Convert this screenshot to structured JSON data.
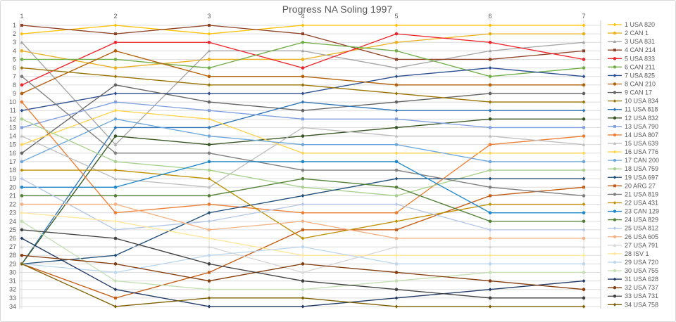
{
  "title": "Progress NA Soling 1997",
  "chart_data": {
    "type": "line",
    "title": "Progress NA Soling 1997",
    "x_axis": {
      "label_position": "top",
      "ticks": [
        "1",
        "2",
        "3",
        "4",
        "5",
        "6",
        "7"
      ]
    },
    "y_axis": {
      "inverted": true,
      "min": 1,
      "max": 34,
      "ticks": [
        "1",
        "2",
        "3",
        "4",
        "5",
        "6",
        "7",
        "8",
        "9",
        "10",
        "11",
        "12",
        "13",
        "14",
        "15",
        "16",
        "17",
        "18",
        "19",
        "20",
        "21",
        "22",
        "23",
        "24",
        "25",
        "26",
        "27",
        "28",
        "29",
        "30",
        "31",
        "32",
        "33",
        "34"
      ]
    },
    "grid": true,
    "legend_position": "right",
    "colors": {
      "text": "#595959",
      "gridline": "#DCDCDC",
      "axis": "#C8C8C8",
      "background": "#FFFFFF"
    },
    "series": [
      {
        "name": "1 USA 820",
        "color": "#FFC000",
        "marker": "diamond",
        "positions": [
          2,
          1,
          2,
          1,
          1,
          1,
          1
        ]
      },
      {
        "name": "2 CAN 1",
        "color": "#ECB01F",
        "marker": "circle",
        "positions": [
          4,
          6,
          5,
          5,
          3,
          2,
          2
        ]
      },
      {
        "name": "3 USA 831",
        "color": "#A5A5A5",
        "marker": "triangle",
        "positions": [
          3,
          15,
          4,
          4,
          6,
          4,
          3
        ]
      },
      {
        "name": "4 CAN 214",
        "color": "#8F4125",
        "marker": "square",
        "positions": [
          1,
          2,
          1,
          2,
          5,
          5,
          4
        ]
      },
      {
        "name": "5 USA 833",
        "color": "#EE2229",
        "marker": "circle",
        "positions": [
          8,
          3,
          3,
          6,
          2,
          3,
          5
        ]
      },
      {
        "name": "6 CAN 211",
        "color": "#70AD47",
        "marker": "circle",
        "positions": [
          5,
          5,
          6,
          3,
          4,
          7,
          6
        ]
      },
      {
        "name": "7 USA 825",
        "color": "#2A4E8F",
        "marker": "diamond",
        "positions": [
          11,
          9,
          9,
          9,
          7,
          6,
          7
        ]
      },
      {
        "name": "8 CAN 210",
        "color": "#B45F06",
        "marker": "circle",
        "positions": [
          9,
          4,
          7,
          7,
          8,
          8,
          8
        ]
      },
      {
        "name": "9 CAN 17",
        "color": "#636363",
        "marker": "circle",
        "positions": [
          16,
          8,
          10,
          11,
          10,
          9,
          9
        ]
      },
      {
        "name": "10 USA 834",
        "color": "#997300",
        "marker": "diamond",
        "positions": [
          6,
          7,
          8,
          8,
          9,
          10,
          10
        ]
      },
      {
        "name": "11 USA 818",
        "color": "#2E75B6",
        "marker": "diamond",
        "positions": [
          29,
          13,
          13,
          10,
          11,
          11,
          11
        ]
      },
      {
        "name": "12 USA 832",
        "color": "#375623",
        "marker": "circle",
        "positions": [
          29,
          14,
          15,
          14,
          13,
          12,
          12
        ]
      },
      {
        "name": "13 USA 790",
        "color": "#809FE0",
        "marker": "square",
        "positions": [
          13,
          10,
          11,
          12,
          12,
          13,
          13
        ]
      },
      {
        "name": "14 USA 807",
        "color": "#ED7D31",
        "marker": "circle",
        "positions": [
          10,
          23,
          22,
          23,
          23,
          15,
          14
        ]
      },
      {
        "name": "15 USA 639",
        "color": "#BFBFBF",
        "marker": "triangle",
        "positions": [
          14,
          19,
          20,
          13,
          14,
          14,
          15
        ]
      },
      {
        "name": "16 USA 776",
        "color": "#FFD34D",
        "marker": "diamond",
        "positions": [
          15,
          11,
          12,
          16,
          16,
          16,
          16
        ]
      },
      {
        "name": "17 CAN 200",
        "color": "#6FA8DC",
        "marker": "circle",
        "positions": [
          17,
          12,
          14,
          15,
          15,
          17,
          17
        ]
      },
      {
        "name": "18 USA 759",
        "color": "#A9D18E",
        "marker": "circle",
        "positions": [
          12,
          17,
          18,
          20,
          21,
          18,
          18
        ]
      },
      {
        "name": "19 USA 697",
        "color": "#1F4E79",
        "marker": "diamond",
        "positions": [
          29,
          28,
          23,
          21,
          19,
          19,
          19
        ]
      },
      {
        "name": "20 ARG 27",
        "color": "#C55A11",
        "marker": "square",
        "positions": [
          29,
          33,
          30,
          25,
          25,
          21,
          20
        ]
      },
      {
        "name": "21 USA 819",
        "color": "#7F7F7F",
        "marker": "circle",
        "positions": [
          7,
          16,
          16,
          18,
          18,
          20,
          21
        ]
      },
      {
        "name": "22 USA 431",
        "color": "#BF8F00",
        "marker": "diamond",
        "positions": [
          18,
          18,
          19,
          26,
          24,
          22,
          22
        ]
      },
      {
        "name": "23 CAN 129",
        "color": "#1E87C9",
        "marker": "circle",
        "positions": [
          20,
          20,
          17,
          17,
          17,
          23,
          23
        ]
      },
      {
        "name": "24 USA 829",
        "color": "#538135",
        "marker": "circle",
        "positions": [
          21,
          21,
          21,
          19,
          20,
          24,
          24
        ]
      },
      {
        "name": "25 USA 812",
        "color": "#B4C7E7",
        "marker": "diamond",
        "positions": [
          19,
          25,
          24,
          22,
          22,
          25,
          25
        ]
      },
      {
        "name": "26 USA 605",
        "color": "#F4B183",
        "marker": "circle",
        "positions": [
          22,
          22,
          25,
          24,
          26,
          26,
          26
        ]
      },
      {
        "name": "27 USA 791",
        "color": "#D6D6D6",
        "marker": "triangle",
        "positions": [
          27,
          27,
          27,
          30,
          27,
          27,
          27
        ]
      },
      {
        "name": "28 ISV 1",
        "color": "#FFE699",
        "marker": "diamond",
        "positions": [
          23,
          24,
          26,
          28,
          28,
          28,
          28
        ]
      },
      {
        "name": "29 USA 720",
        "color": "#BDD7EE",
        "marker": "circle",
        "positions": [
          29,
          30,
          28,
          27,
          29,
          29,
          29
        ]
      },
      {
        "name": "30 USA 755",
        "color": "#C5E0B4",
        "marker": "circle",
        "positions": [
          24,
          31,
          32,
          32,
          31,
          30,
          30
        ]
      },
      {
        "name": "31 USA 628",
        "color": "#1F3864",
        "marker": "diamond",
        "positions": [
          26,
          32,
          34,
          34,
          33,
          32,
          31
        ]
      },
      {
        "name": "32 USA 737",
        "color": "#843C0C",
        "marker": "circle",
        "positions": [
          28,
          29,
          31,
          29,
          30,
          31,
          32
        ]
      },
      {
        "name": "33 USA 731",
        "color": "#404040",
        "marker": "circle",
        "positions": [
          25,
          26,
          29,
          31,
          32,
          33,
          33
        ]
      },
      {
        "name": "34 USA 758",
        "color": "#7F6000",
        "marker": "diamond",
        "positions": [
          29,
          34,
          33,
          33,
          34,
          34,
          34
        ]
      }
    ]
  }
}
